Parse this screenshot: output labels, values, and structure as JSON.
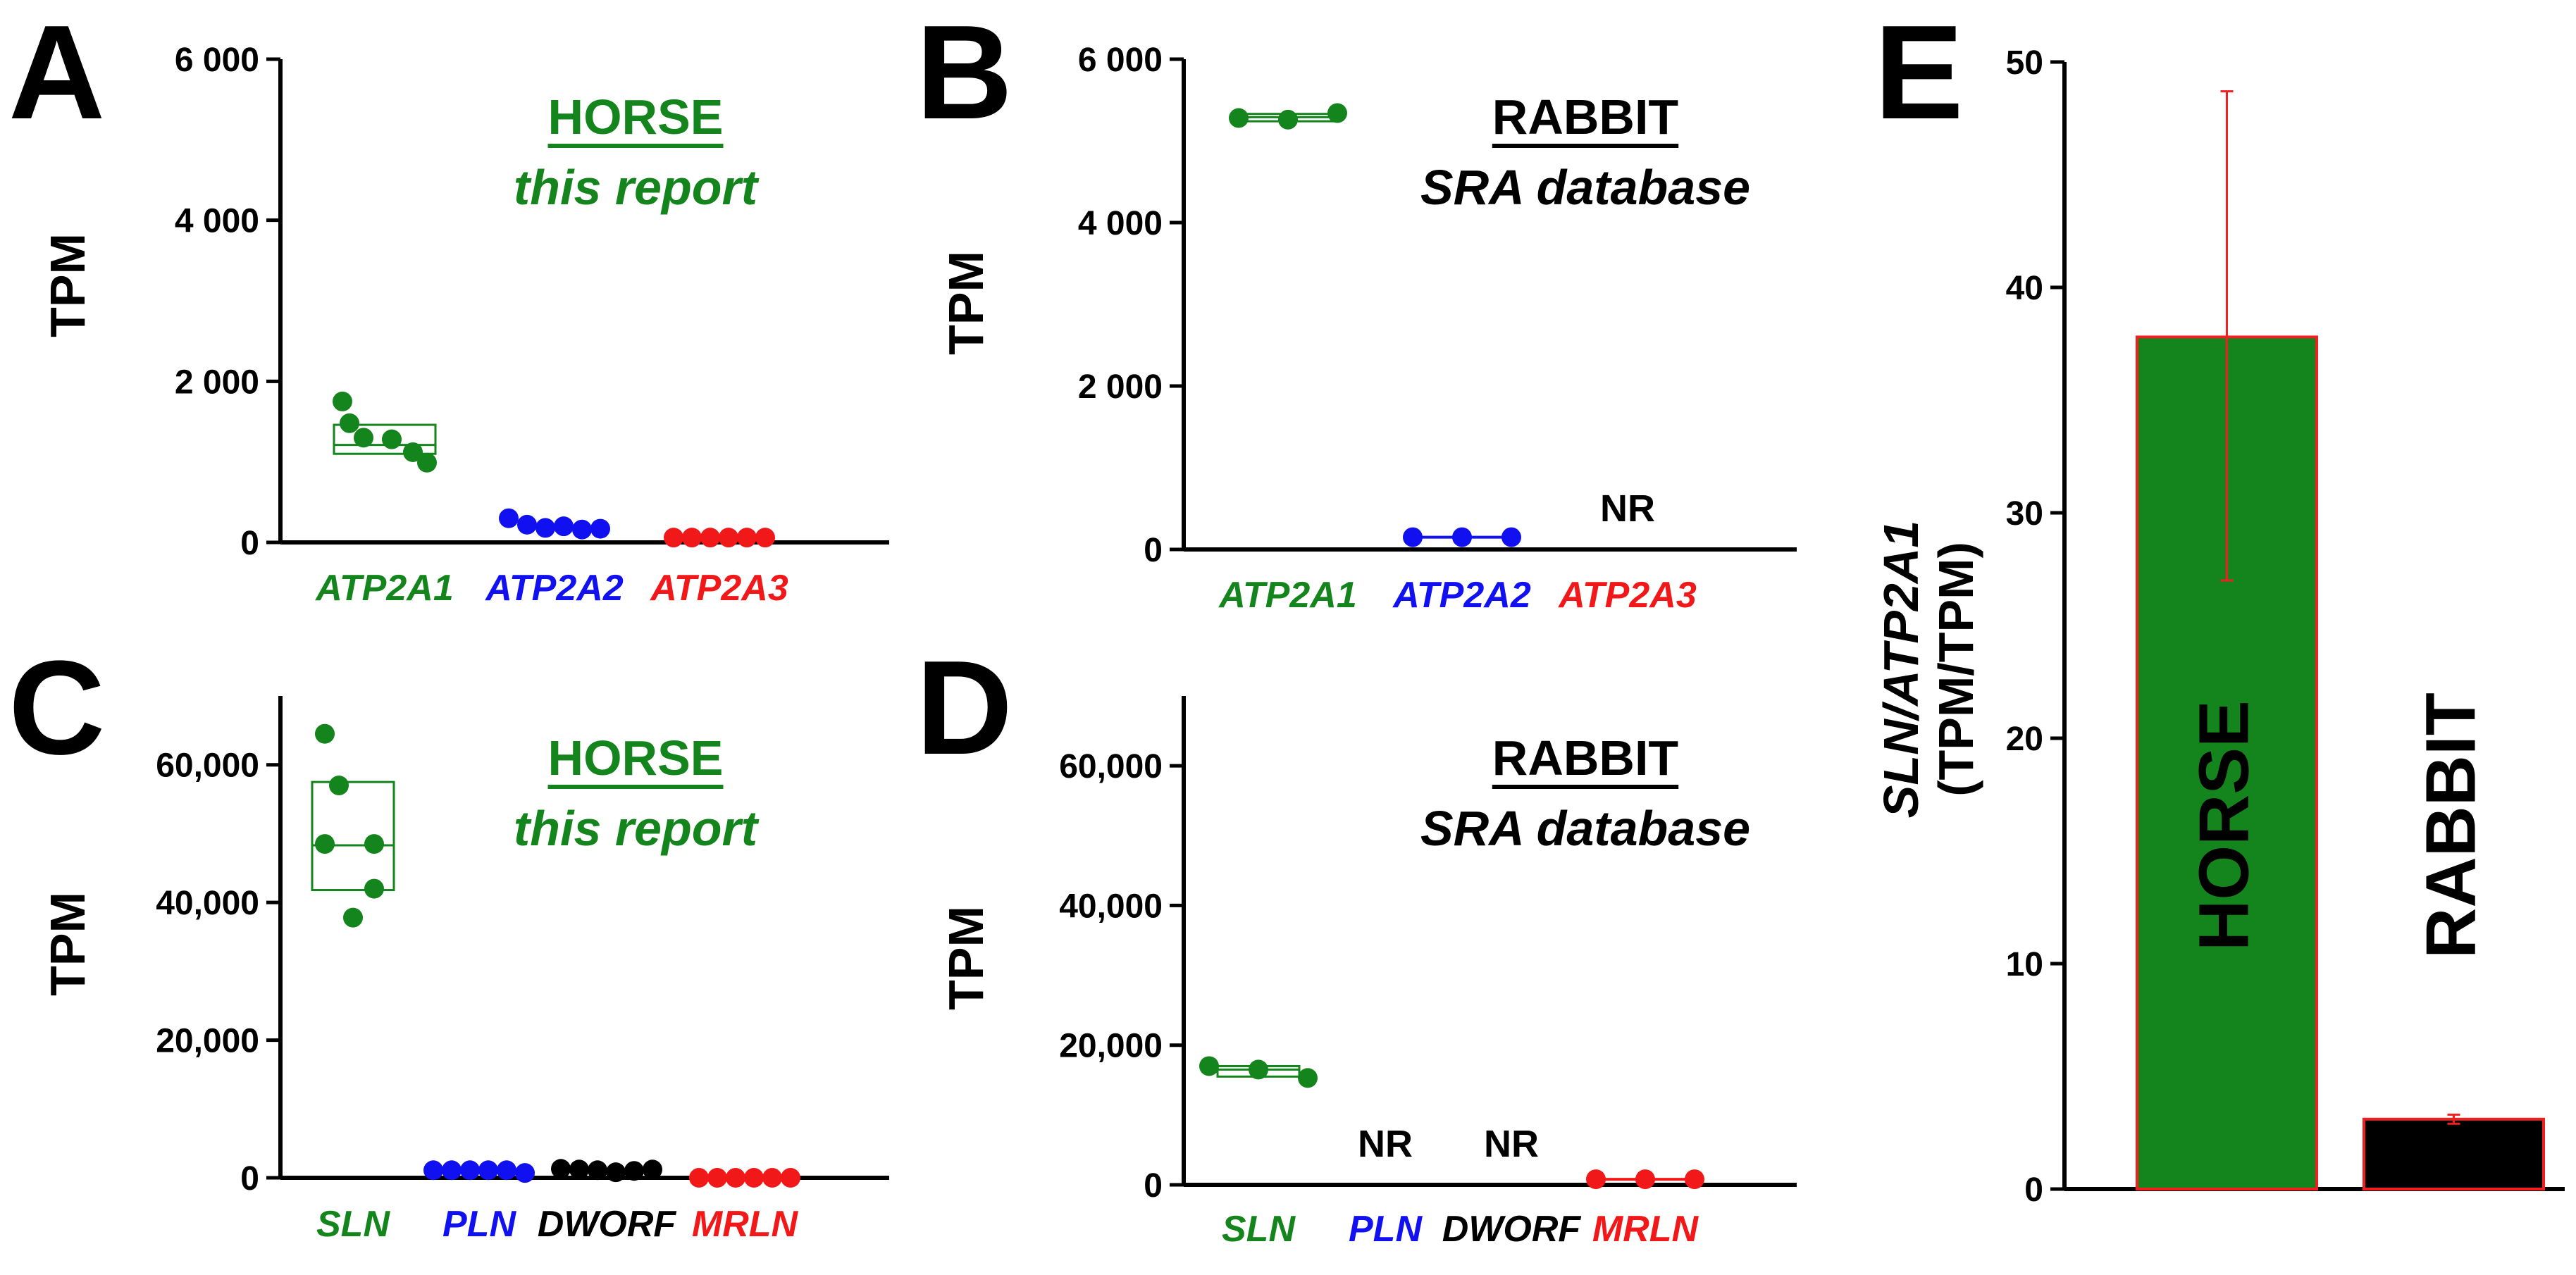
{
  "colors": {
    "green": "#14841c",
    "blue": "#1010f0",
    "red": "#f01818",
    "black": "#000000",
    "bar_edge": "#f02020",
    "error": "#f02020"
  },
  "chart_data": [
    {
      "id": "A",
      "type": "scatter",
      "panel_letter": "A",
      "ylabel": "TPM",
      "ylim": [
        0,
        6000
      ],
      "yticks": [
        0,
        2000,
        4000,
        6000
      ],
      "ytick_labels": [
        "0",
        "2 000",
        "4 000",
        "6 000"
      ],
      "annotation": {
        "species": "HORSE",
        "source": "this report",
        "color": "#14841c"
      },
      "categories": [
        {
          "label": "ATP2A1",
          "color": "#14841c",
          "points": [
            1750,
            1480,
            1300,
            1280,
            1120,
            990
          ],
          "box": {
            "min": 1100,
            "q1": 1100,
            "median": 1210,
            "q3": 1460,
            "max": 1460
          }
        },
        {
          "label": "ATP2A2",
          "color": "#1010f0",
          "points": [
            300,
            220,
            180,
            200,
            160,
            170
          ],
          "box": null
        },
        {
          "label": "ATP2A3",
          "color": "#f01818",
          "points": [
            60,
            60,
            60,
            60,
            60,
            60
          ],
          "box": null
        }
      ]
    },
    {
      "id": "B",
      "type": "scatter",
      "panel_letter": "B",
      "ylabel": "TPM",
      "ylim": [
        0,
        6000
      ],
      "yticks": [
        0,
        2000,
        4000,
        6000
      ],
      "ytick_labels": [
        "0",
        "2 000",
        "4 000",
        "6 000"
      ],
      "annotation": {
        "species": "RABBIT",
        "source": "SRA database",
        "color": "#000000"
      },
      "categories": [
        {
          "label": "ATP2A1",
          "color": "#14841c",
          "points": [
            5280,
            5260,
            5340
          ],
          "box": {
            "min": 5240,
            "q1": 5240,
            "median": 5290,
            "q3": 5330,
            "max": 5330
          }
        },
        {
          "label": "ATP2A2",
          "color": "#1010f0",
          "points": [
            150,
            150,
            150
          ],
          "box": {
            "min": 150,
            "q1": 150,
            "median": 150,
            "q3": 150,
            "max": 150
          }
        },
        {
          "label": "ATP2A3",
          "color": "#f01818",
          "points": [],
          "box": null,
          "note": "NR"
        }
      ]
    },
    {
      "id": "C",
      "type": "scatter",
      "panel_letter": "C",
      "ylabel": "TPM",
      "ylim": [
        0,
        70000
      ],
      "yticks": [
        0,
        20000,
        40000,
        60000
      ],
      "ytick_labels": [
        "0",
        "20,000",
        "40,000",
        "60,000"
      ],
      "annotation": {
        "species": "HORSE",
        "source": "this report",
        "color": "#14841c"
      },
      "categories": [
        {
          "label": "SLN",
          "color": "#14841c",
          "points": [
            64500,
            57000,
            48500,
            48500,
            42000,
            37800
          ],
          "box": {
            "min": 41800,
            "q1": 41800,
            "median": 48300,
            "q3": 57500,
            "max": 57500
          }
        },
        {
          "label": "PLN",
          "color": "#1010f0",
          "points": [
            1100,
            1100,
            1100,
            1100,
            1100,
            700
          ],
          "box": null
        },
        {
          "label": "DWORF",
          "color": "#000000",
          "points": [
            1300,
            1200,
            1100,
            800,
            1000,
            1200
          ],
          "box": null
        },
        {
          "label": "MRLN",
          "color": "#f01818",
          "points": [
            0,
            0,
            0,
            0,
            0,
            0
          ],
          "box": null
        }
      ]
    },
    {
      "id": "D",
      "type": "scatter",
      "panel_letter": "D",
      "ylabel": "TPM",
      "ylim": [
        0,
        70000
      ],
      "yticks": [
        0,
        20000,
        40000,
        60000
      ],
      "ytick_labels": [
        "0",
        "20,000",
        "40,000",
        "60,000"
      ],
      "annotation": {
        "species": "RABBIT",
        "source": "SRA database",
        "color": "#000000"
      },
      "categories": [
        {
          "label": "SLN",
          "color": "#14841c",
          "points": [
            17000,
            16500,
            15300
          ],
          "box": {
            "min": 15500,
            "q1": 15500,
            "median": 16500,
            "q3": 17000,
            "max": 17000
          }
        },
        {
          "label": "PLN",
          "color": "#1010f0",
          "points": [],
          "box": null,
          "note": "NR"
        },
        {
          "label": "DWORF",
          "color": "#000000",
          "points": [],
          "box": null,
          "note": "NR"
        },
        {
          "label": "MRLN",
          "color": "#f01818",
          "points": [
            800,
            800,
            800
          ],
          "box": {
            "min": 800,
            "q1": 800,
            "median": 800,
            "q3": 800,
            "max": 800
          }
        }
      ]
    },
    {
      "id": "E",
      "type": "bar",
      "panel_letter": "E",
      "ylabel_line1": "SLN/ATP2A1",
      "ylabel_line2": "(TPM/TPM)",
      "ylim": [
        0,
        50
      ],
      "yticks": [
        0,
        10,
        20,
        30,
        40,
        50
      ],
      "ytick_labels": [
        "0",
        "10",
        "20",
        "30",
        "40",
        "50"
      ],
      "bars": [
        {
          "label": "HORSE",
          "value": 37.8,
          "err_low": 27,
          "err_high": 48.7,
          "fill": "#14841c",
          "label_color": "#000000"
        },
        {
          "label": "RABBIT",
          "value": 3.1,
          "err_low": 2.9,
          "err_high": 3.3,
          "fill": "#000000",
          "label_color": "#000000"
        }
      ]
    }
  ]
}
